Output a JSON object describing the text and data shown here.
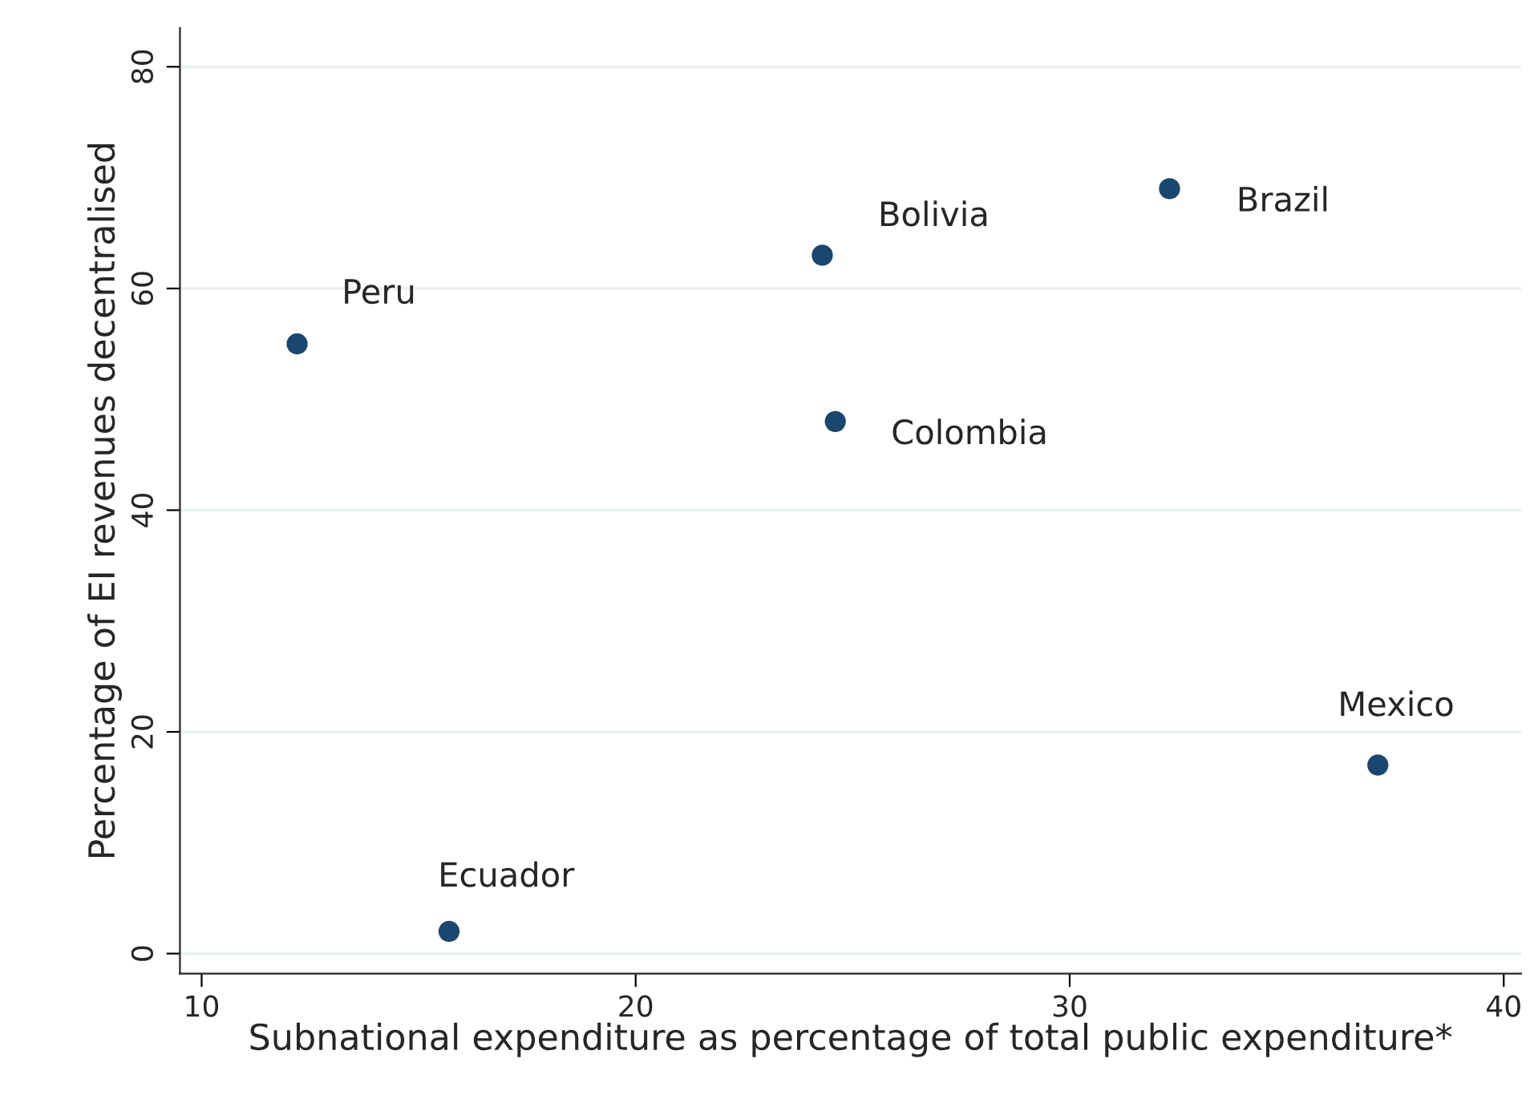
{
  "chart_data": {
    "type": "scatter",
    "xlabel": "Subnational expenditure as percentage of total public expenditure*",
    "ylabel": "Percentage of EI revenues decentralised",
    "x": [
      12.2,
      15.7,
      24.3,
      24.6,
      32.3,
      37.1
    ],
    "values": [
      55,
      2,
      63,
      48,
      69,
      17
    ],
    "color": "#1a476f",
    "marker": "circle",
    "annotations": [
      {
        "text": "Peru",
        "x": 12.2,
        "y": 55
      },
      {
        "text": "Ecuador",
        "x": 15.7,
        "y": 2
      },
      {
        "text": "Bolivia",
        "x": 24.3,
        "y": 63
      },
      {
        "text": "Colombia",
        "x": 24.6,
        "y": 48
      },
      {
        "text": "Brazil",
        "x": 32.3,
        "y": 69
      },
      {
        "text": "Mexico",
        "x": 37.1,
        "y": 17
      }
    ],
    "xlim": [
      9.5,
      40.4
    ],
    "ylim": [
      -1.8,
      83.5
    ],
    "xticks": [
      10,
      20,
      30,
      40
    ],
    "yticks": [
      0,
      20,
      40,
      60,
      80
    ],
    "grid": "y"
  }
}
